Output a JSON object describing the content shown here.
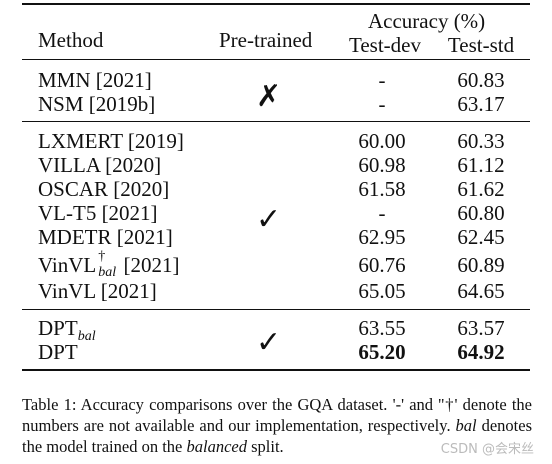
{
  "header": {
    "method": "Method",
    "pretrained": "Pre-trained",
    "accuracy": "Accuracy (%)",
    "testdev": "Test-dev",
    "teststd": "Test-std"
  },
  "groups": [
    {
      "mark": "✗",
      "rows": [
        {
          "method": "MMN [2021]",
          "dev": "-",
          "std": "60.83"
        },
        {
          "method": "NSM [2019b]",
          "dev": "-",
          "std": "63.17"
        }
      ]
    },
    {
      "mark": "✓",
      "rows": [
        {
          "method": "LXMERT [2019]",
          "dev": "60.00",
          "std": "60.33"
        },
        {
          "method": "VILLA [2020]",
          "dev": "60.98",
          "std": "61.12"
        },
        {
          "method": "OSCAR [2020]",
          "dev": "61.58",
          "std": "61.62"
        },
        {
          "method": "VL-T5 [2021]",
          "dev": "-",
          "std": "60.80"
        },
        {
          "method": "MDETR [2021]",
          "dev": "62.95",
          "std": "62.45"
        },
        {
          "method_base": "VinVL",
          "method_sup": "†",
          "method_sub": "bal",
          "method_tail": " [2021]",
          "dev": "60.76",
          "std": "60.89"
        },
        {
          "method": "VinVL [2021]",
          "dev": "65.05",
          "std": "64.65"
        }
      ]
    },
    {
      "mark": "✓",
      "rows": [
        {
          "method_base": "DPT",
          "method_sub": "bal",
          "dev": "63.55",
          "std": "63.57"
        },
        {
          "method": "DPT",
          "dev": "65.20",
          "std": "64.92",
          "bold": true
        }
      ]
    }
  ],
  "caption": {
    "p1": "Table 1: Accuracy comparisons over the GQA dataset. '-' and ''†' denote the numbers are not available and our implementation, respectively. ",
    "it1": "bal",
    "p2": " denotes the model trained on the ",
    "it2": "balanced",
    "p3": " split."
  },
  "watermark": "CSDN @会宋丝"
}
